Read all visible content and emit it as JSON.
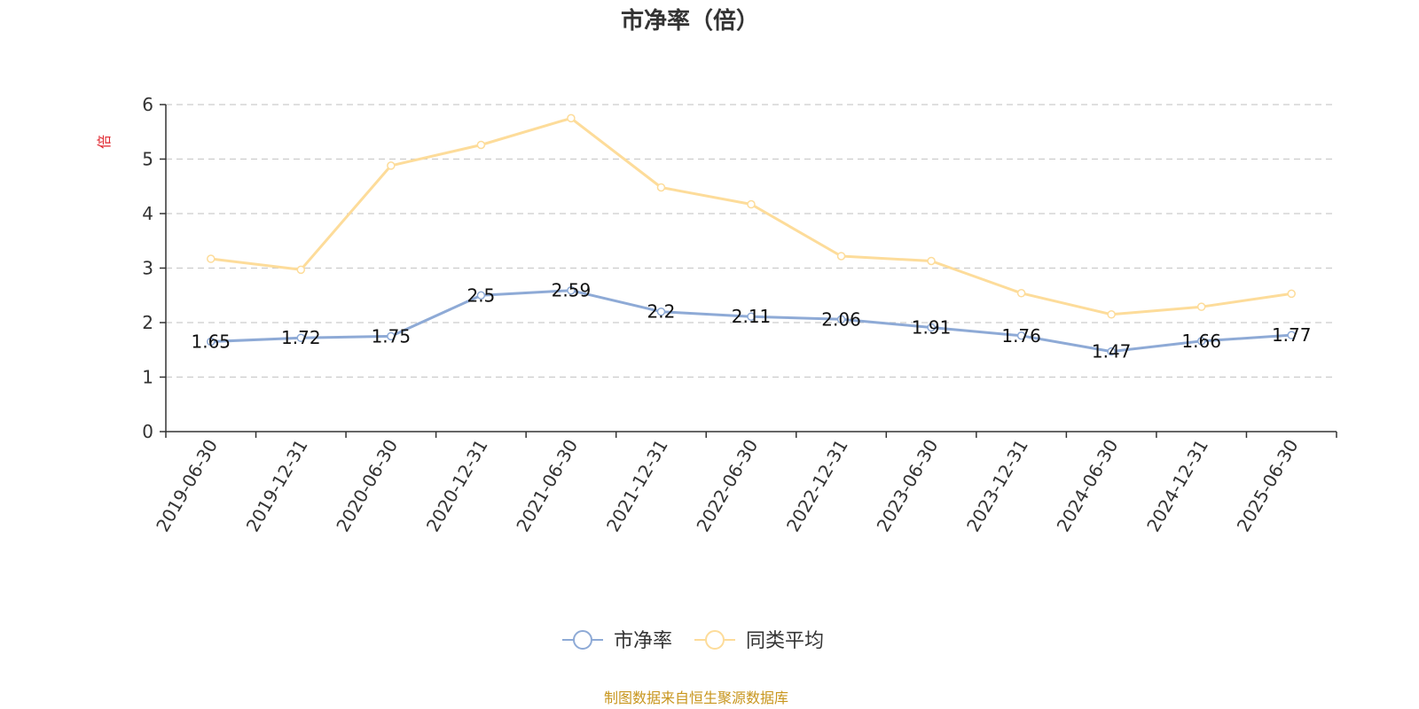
{
  "chart_data": {
    "type": "line",
    "title": "市净率（倍）",
    "ylabel": "倍",
    "xlabel": "",
    "ylim": [
      0,
      6
    ],
    "yticks": [
      0,
      1,
      2,
      3,
      4,
      5,
      6
    ],
    "grid": true,
    "legend_position": "bottom",
    "categories": [
      "2019-06-30",
      "2019-12-31",
      "2020-06-30",
      "2020-12-31",
      "2021-06-30",
      "2021-12-31",
      "2022-06-30",
      "2022-12-31",
      "2023-06-30",
      "2023-12-31",
      "2024-06-30",
      "2024-12-31",
      "2025-06-30"
    ],
    "series": [
      {
        "name": "市净率",
        "color": "#8eaad6",
        "values": [
          1.65,
          1.72,
          1.75,
          2.5,
          2.59,
          2.2,
          2.11,
          2.06,
          1.91,
          1.76,
          1.47,
          1.66,
          1.77
        ],
        "show_labels": true
      },
      {
        "name": "同类平均",
        "color": "#fddc9a",
        "values": [
          3.17,
          2.97,
          4.88,
          5.26,
          5.75,
          4.48,
          4.17,
          3.22,
          3.13,
          2.54,
          2.15,
          2.29,
          2.53
        ],
        "show_labels": false
      }
    ],
    "source": "制图数据来自恒生聚源数据库",
    "ylabel_color": "#e0262e",
    "source_color": "#c8961e"
  }
}
